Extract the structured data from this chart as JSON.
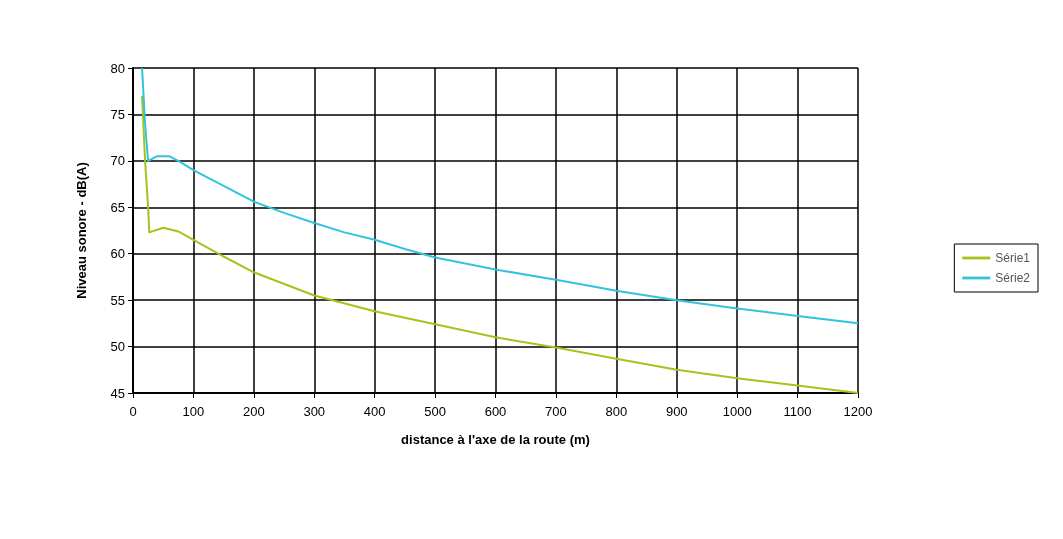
{
  "chart_data": {
    "type": "line",
    "xlabel": "distance à l'axe de la route (m)",
    "ylabel": "Niveau sonore - dB(A)",
    "xlim": [
      0,
      1200
    ],
    "xticks": [
      0,
      100,
      200,
      300,
      400,
      500,
      600,
      700,
      800,
      900,
      1000,
      1100,
      1200
    ],
    "ylim": [
      45,
      80
    ],
    "yticks": [
      45,
      50,
      55,
      60,
      65,
      70,
      75,
      80
    ],
    "grid": true,
    "legend": "right",
    "marker": "none",
    "line_style": "solid",
    "series": [
      {
        "name": "Série1",
        "color": "#a4c41c",
        "x": [
          15,
          20,
          25,
          27,
          50,
          75,
          100,
          150,
          200,
          300,
          400,
          500,
          600,
          700,
          800,
          900,
          1000,
          1100,
          1200
        ],
        "values": [
          77,
          70,
          65,
          62.3,
          62.8,
          62.4,
          61.5,
          59.7,
          58,
          55.5,
          53.8,
          52.4,
          51,
          49.9,
          48.7,
          47.5,
          46.6,
          45.8,
          45
        ]
      },
      {
        "name": "Série2",
        "color": "#33c3dc",
        "x": [
          15,
          20,
          25,
          40,
          60,
          80,
          100,
          150,
          200,
          250,
          300,
          350,
          400,
          450,
          500,
          600,
          700,
          800,
          900,
          1000,
          1100,
          1200
        ],
        "values": [
          80,
          74,
          70,
          70.5,
          70.5,
          69.8,
          69,
          67.3,
          65.6,
          64.4,
          63.3,
          62.3,
          61.5,
          60.5,
          59.6,
          58.3,
          57.2,
          56,
          55,
          54.1,
          53.3,
          52.5
        ]
      }
    ]
  }
}
